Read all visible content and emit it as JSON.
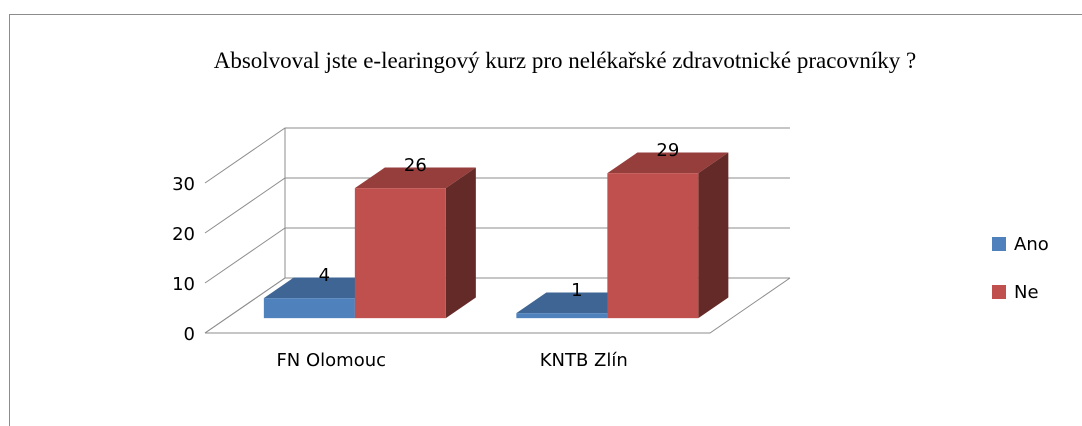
{
  "chart_data": {
    "type": "bar3d",
    "title": "Absolvoval jste e-learingový kurz pro nelékařské zdravotnické pracovníky ?",
    "categories": [
      "FN Olomouc",
      "KNTB Zlín"
    ],
    "series": [
      {
        "name": "Ano",
        "color": "#4f81bd",
        "values": [
          4,
          1
        ]
      },
      {
        "name": "Ne",
        "color": "#c0504d",
        "values": [
          26,
          29
        ]
      }
    ],
    "ylim": [
      0,
      30
    ],
    "yticks": [
      0,
      10,
      20,
      30
    ],
    "grid": true,
    "legend": "right"
  }
}
